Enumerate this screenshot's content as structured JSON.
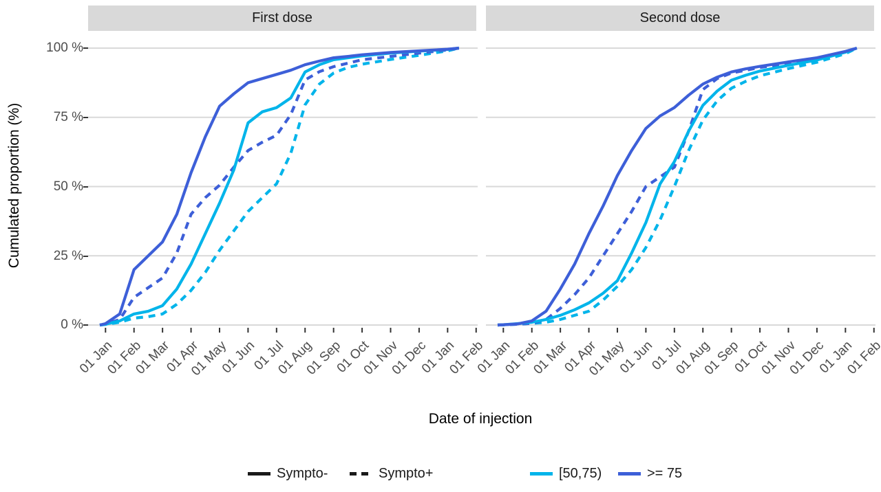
{
  "chart_data": {
    "type": "line",
    "description": "Cumulated proportion of vaccinated by date of injection, faceted by dose, by symptom status and age group",
    "xlabel": "Date of injection",
    "ylabel": "Cumulated proportion (%)",
    "ylim": [
      0,
      100
    ],
    "grid": "horizontal-major-only",
    "legend_position": "bottom",
    "x_unit": "months since 01 Jan",
    "x_ticks": [
      "01 Jan",
      "01 Feb",
      "01 Mar",
      "01 Apr",
      "01 May",
      "01 Jun",
      "01 Jul",
      "01 Aug",
      "01 Sep",
      "01 Oct",
      "01 Nov",
      "01 Dec",
      "01 Jan",
      "01 Feb"
    ],
    "y_ticks": [
      {
        "label": "0 %",
        "value": 0
      },
      {
        "label": "25 %",
        "value": 25
      },
      {
        "label": "50 %",
        "value": 50
      },
      {
        "label": "75 %",
        "value": 75
      },
      {
        "label": "100 %",
        "value": 100
      }
    ],
    "colors": {
      "age_50_75": "#00b4ea",
      "age_ge_75": "#3d5fd8",
      "grid": "#d9d9d9",
      "strip_bg": "#d9d9d9",
      "axis_text": "#4d4d4d"
    },
    "legend": {
      "linetype": [
        {
          "label": "Sympto-",
          "style": "solid"
        },
        {
          "label": "Sympto+",
          "style": "dashed"
        }
      ],
      "color": [
        {
          "label": "[50,75)",
          "hex": "#00b4ea"
        },
        {
          "label": ">= 75",
          "hex": "#3d5fd8"
        }
      ]
    },
    "facets": [
      {
        "title": "First dose",
        "series": [
          {
            "name": "[50,75) Sympto+",
            "age": "[50,75)",
            "sympto": "Sympto+",
            "style": "dashed",
            "color": "#00b4ea",
            "points": [
              [
                -0.2,
                0
              ],
              [
                0,
                0.2
              ],
              [
                0.5,
                1
              ],
              [
                1,
                2.5
              ],
              [
                1.5,
                3
              ],
              [
                2,
                4
              ],
              [
                2.5,
                7.5
              ],
              [
                3,
                12.5
              ],
              [
                3.5,
                19
              ],
              [
                4,
                27
              ],
              [
                4.5,
                34
              ],
              [
                5,
                41
              ],
              [
                5.5,
                46
              ],
              [
                6,
                51
              ],
              [
                6.5,
                62
              ],
              [
                7,
                79.5
              ],
              [
                7.5,
                87
              ],
              [
                8,
                91
              ],
              [
                8.5,
                93
              ],
              [
                9,
                94.2
              ],
              [
                10,
                95.9
              ],
              [
                11,
                97.4
              ],
              [
                12,
                99
              ],
              [
                12.4,
                100
              ]
            ]
          },
          {
            "name": ">= 75 Sympto+",
            "age": ">= 75",
            "sympto": "Sympto+",
            "style": "dashed",
            "color": "#3d5fd8",
            "points": [
              [
                -0.2,
                0
              ],
              [
                0,
                0.3
              ],
              [
                0.5,
                2
              ],
              [
                1,
                10
              ],
              [
                1.5,
                13.5
              ],
              [
                2,
                17
              ],
              [
                2.5,
                26
              ],
              [
                3,
                40
              ],
              [
                3.5,
                46
              ],
              [
                4,
                50.5
              ],
              [
                4.5,
                57
              ],
              [
                5,
                63
              ],
              [
                5.5,
                66
              ],
              [
                6,
                68.5
              ],
              [
                6.5,
                76
              ],
              [
                7,
                88.5
              ],
              [
                7.5,
                91.5
              ],
              [
                8,
                93.3
              ],
              [
                9,
                95.8
              ],
              [
                10,
                97
              ],
              [
                11,
                98.2
              ],
              [
                12,
                99.3
              ],
              [
                12.4,
                100
              ]
            ]
          },
          {
            "name": "[50,75) Sympto-",
            "age": "[50,75)",
            "sympto": "Sympto-",
            "style": "solid",
            "color": "#00b4ea",
            "points": [
              [
                -0.2,
                0
              ],
              [
                0,
                0.3
              ],
              [
                0.5,
                1.5
              ],
              [
                1,
                4
              ],
              [
                1.5,
                5
              ],
              [
                2,
                7
              ],
              [
                2.5,
                13
              ],
              [
                3,
                22
              ],
              [
                3.5,
                33
              ],
              [
                4,
                44
              ],
              [
                4.5,
                56
              ],
              [
                5,
                73
              ],
              [
                5.5,
                77
              ],
              [
                6,
                78.5
              ],
              [
                6.5,
                82
              ],
              [
                7,
                91.4
              ],
              [
                7.5,
                94
              ],
              [
                8,
                95.8
              ],
              [
                9,
                97.2
              ],
              [
                10,
                98.2
              ],
              [
                11,
                98.9
              ],
              [
                12,
                99.5
              ],
              [
                12.4,
                100
              ]
            ]
          },
          {
            "name": ">= 75 Sympto-",
            "age": ">= 75",
            "sympto": "Sympto-",
            "style": "solid",
            "color": "#3d5fd8",
            "points": [
              [
                -0.2,
                0
              ],
              [
                0,
                0.5
              ],
              [
                0.5,
                4
              ],
              [
                1,
                20
              ],
              [
                1.5,
                25
              ],
              [
                2,
                30
              ],
              [
                2.5,
                40
              ],
              [
                3,
                55
              ],
              [
                3.5,
                68
              ],
              [
                4,
                79
              ],
              [
                4.5,
                83.5
              ],
              [
                5,
                87.5
              ],
              [
                5.5,
                89
              ],
              [
                6,
                90.5
              ],
              [
                6.5,
                92
              ],
              [
                7,
                94
              ],
              [
                7.5,
                95.3
              ],
              [
                8,
                96.5
              ],
              [
                8.5,
                97
              ],
              [
                9,
                97.6
              ],
              [
                10,
                98.4
              ],
              [
                11,
                99
              ],
              [
                12,
                99.6
              ],
              [
                12.4,
                100
              ]
            ]
          }
        ]
      },
      {
        "title": "Second dose",
        "series": [
          {
            "name": "[50,75) Sympto+",
            "age": "[50,75)",
            "sympto": "Sympto+",
            "style": "dashed",
            "color": "#00b4ea",
            "points": [
              [
                -0.2,
                0
              ],
              [
                0,
                0.05
              ],
              [
                0.5,
                0.3
              ],
              [
                1,
                0.6
              ],
              [
                1.5,
                1
              ],
              [
                2,
                2
              ],
              [
                2.5,
                3.5
              ],
              [
                3,
                5
              ],
              [
                3.5,
                9
              ],
              [
                4,
                14
              ],
              [
                4.5,
                20
              ],
              [
                5,
                28
              ],
              [
                5.5,
                38
              ],
              [
                6,
                50
              ],
              [
                6.5,
                63
              ],
              [
                7,
                74
              ],
              [
                7.5,
                81
              ],
              [
                8,
                85.5
              ],
              [
                8.5,
                88
              ],
              [
                9,
                90
              ],
              [
                10,
                92.6
              ],
              [
                11,
                94.9
              ],
              [
                12,
                98
              ],
              [
                12.4,
                100
              ]
            ]
          },
          {
            "name": ">= 75 Sympto+",
            "age": ">= 75",
            "sympto": "Sympto+",
            "style": "dashed",
            "color": "#3d5fd8",
            "points": [
              [
                -0.2,
                0
              ],
              [
                0,
                0.1
              ],
              [
                0.5,
                0.3
              ],
              [
                1,
                0.6
              ],
              [
                1.5,
                2
              ],
              [
                2,
                6
              ],
              [
                2.5,
                11
              ],
              [
                3,
                17
              ],
              [
                3.5,
                25
              ],
              [
                4,
                33
              ],
              [
                4.5,
                41
              ],
              [
                5,
                50
              ],
              [
                5.5,
                53.5
              ],
              [
                6,
                57
              ],
              [
                6.5,
                70
              ],
              [
                7,
                85
              ],
              [
                7.5,
                89
              ],
              [
                8,
                91
              ],
              [
                9,
                93
              ],
              [
                10,
                94.5
              ],
              [
                11,
                96.2
              ],
              [
                12,
                98.6
              ],
              [
                12.4,
                100
              ]
            ]
          },
          {
            "name": "[50,75) Sympto-",
            "age": "[50,75)",
            "sympto": "Sympto-",
            "style": "solid",
            "color": "#00b4ea",
            "points": [
              [
                -0.2,
                0
              ],
              [
                0,
                0.1
              ],
              [
                0.5,
                0.5
              ],
              [
                1,
                1
              ],
              [
                1.5,
                2
              ],
              [
                2,
                3.5
              ],
              [
                2.5,
                5.5
              ],
              [
                3,
                8
              ],
              [
                3.5,
                11.5
              ],
              [
                4,
                16
              ],
              [
                4.5,
                26
              ],
              [
                5,
                37
              ],
              [
                5.5,
                51
              ],
              [
                6,
                59
              ],
              [
                6.5,
                70
              ],
              [
                7,
                79.3
              ],
              [
                7.5,
                84.5
              ],
              [
                8,
                88.4
              ],
              [
                8.5,
                90.2
              ],
              [
                9,
                91.7
              ],
              [
                10,
                93.8
              ],
              [
                11,
                95.7
              ],
              [
                12,
                98.5
              ],
              [
                12.4,
                100
              ]
            ]
          },
          {
            "name": ">= 75 Sympto-",
            "age": ">= 75",
            "sympto": "Sympto-",
            "style": "solid",
            "color": "#3d5fd8",
            "points": [
              [
                -0.2,
                0
              ],
              [
                0,
                0.1
              ],
              [
                0.5,
                0.4
              ],
              [
                1,
                1.5
              ],
              [
                1.5,
                5
              ],
              [
                2,
                13
              ],
              [
                2.5,
                22
              ],
              [
                3,
                33
              ],
              [
                3.5,
                43
              ],
              [
                4,
                54
              ],
              [
                4.5,
                63
              ],
              [
                5,
                71
              ],
              [
                5.5,
                75.5
              ],
              [
                6,
                78.5
              ],
              [
                6.5,
                83
              ],
              [
                7,
                87
              ],
              [
                7.5,
                89.5
              ],
              [
                8,
                91.4
              ],
              [
                8.5,
                92.5
              ],
              [
                9,
                93.4
              ],
              [
                10,
                95
              ],
              [
                11,
                96.5
              ],
              [
                12,
                98.8
              ],
              [
                12.4,
                100
              ]
            ]
          }
        ]
      }
    ]
  }
}
